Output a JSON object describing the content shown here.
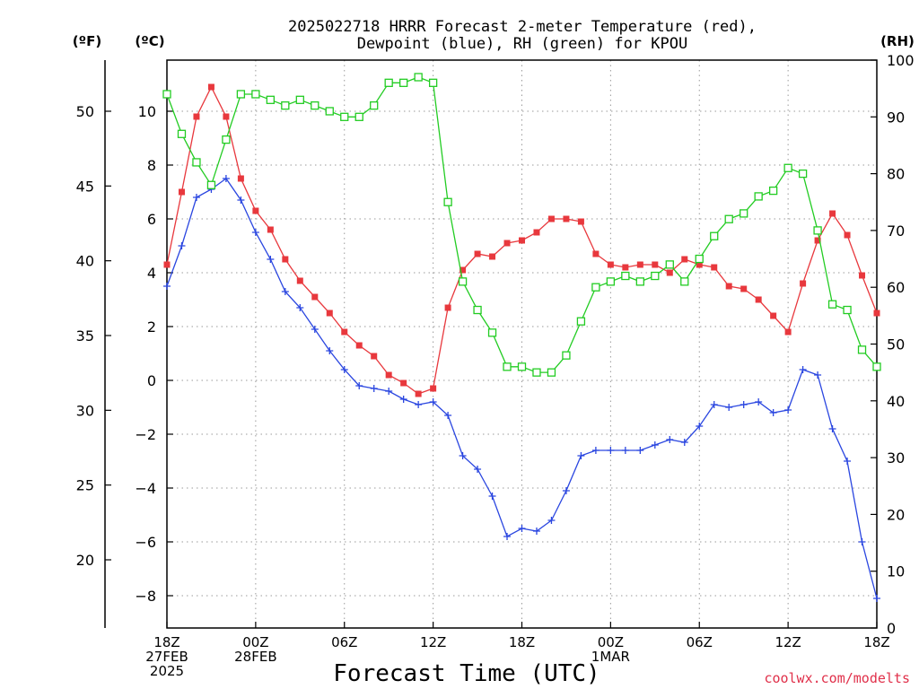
{
  "chart_data": {
    "type": "line",
    "title_line1": "2025022718 HRRR Forecast 2-meter Temperature (red),",
    "title_line2": "Dewpoint (blue), RH (green) for KPOU",
    "xlabel": "Forecast Time (UTC)",
    "units": {
      "fahrenheit": "(ºF)",
      "celsius": "(ºC)",
      "rh": "(RH)"
    },
    "watermark": "coolwx.com/modelts",
    "x_range": [
      0,
      48
    ],
    "celsius_range": [
      -9.2,
      11.9
    ],
    "rh_range": [
      0,
      100
    ],
    "x_ticks": [
      {
        "x": 0,
        "lines": [
          "18Z",
          "27FEB",
          "2025"
        ]
      },
      {
        "x": 6,
        "lines": [
          "00Z",
          "28FEB"
        ]
      },
      {
        "x": 12,
        "lines": [
          "06Z"
        ]
      },
      {
        "x": 18,
        "lines": [
          "12Z"
        ]
      },
      {
        "x": 24,
        "lines": [
          "18Z"
        ]
      },
      {
        "x": 30,
        "lines": [
          "00Z",
          "1MAR"
        ]
      },
      {
        "x": 36,
        "lines": [
          "06Z"
        ]
      },
      {
        "x": 42,
        "lines": [
          "12Z"
        ]
      },
      {
        "x": 48,
        "lines": [
          "18Z"
        ]
      }
    ],
    "celsius_ticks": [
      {
        "v": -8,
        "label": "−8"
      },
      {
        "v": -6,
        "label": "−6"
      },
      {
        "v": -4,
        "label": "−4"
      },
      {
        "v": -2,
        "label": "−2"
      },
      {
        "v": 0,
        "label": "0"
      },
      {
        "v": 2,
        "label": "2"
      },
      {
        "v": 4,
        "label": "4"
      },
      {
        "v": 6,
        "label": "6"
      },
      {
        "v": 8,
        "label": "8"
      },
      {
        "v": 10,
        "label": "10"
      }
    ],
    "fahrenheit_ticks": [
      {
        "v": 20,
        "label": "20"
      },
      {
        "v": 25,
        "label": "25"
      },
      {
        "v": 30,
        "label": "30"
      },
      {
        "v": 35,
        "label": "35"
      },
      {
        "v": 40,
        "label": "40"
      },
      {
        "v": 45,
        "label": "45"
      },
      {
        "v": 50,
        "label": "50"
      }
    ],
    "rh_ticks": [
      {
        "v": 0,
        "label": "0"
      },
      {
        "v": 10,
        "label": "10"
      },
      {
        "v": 20,
        "label": "20"
      },
      {
        "v": 30,
        "label": "30"
      },
      {
        "v": 40,
        "label": "40"
      },
      {
        "v": 50,
        "label": "50"
      },
      {
        "v": 60,
        "label": "60"
      },
      {
        "v": 70,
        "label": "70"
      },
      {
        "v": 80,
        "label": "80"
      },
      {
        "v": 90,
        "label": "90"
      },
      {
        "v": 100,
        "label": "100"
      }
    ],
    "grid": true,
    "series": [
      {
        "key": "temperature",
        "axis": "celsius",
        "color": "#e8383d",
        "marker": "filled-square",
        "values": [
          4.3,
          7.0,
          9.8,
          10.9,
          9.8,
          7.5,
          6.3,
          5.6,
          4.5,
          3.7,
          3.1,
          2.5,
          1.8,
          1.3,
          0.9,
          0.2,
          -0.1,
          -0.5,
          -0.3,
          2.7,
          4.1,
          4.7,
          4.6,
          5.1,
          5.2,
          5.5,
          6.0,
          6.0,
          5.9,
          4.7,
          4.3,
          4.2,
          4.3,
          4.3,
          4.0,
          4.5,
          4.3,
          4.2,
          3.5,
          3.4,
          3.0,
          2.4,
          1.8,
          3.6,
          5.2,
          6.2,
          5.4,
          3.9,
          2.5
        ]
      },
      {
        "key": "dewpoint",
        "axis": "celsius",
        "color": "#2a46e0",
        "marker": "plus",
        "values": [
          3.5,
          5.0,
          6.8,
          7.1,
          7.5,
          6.7,
          5.5,
          4.5,
          3.3,
          2.7,
          1.9,
          1.1,
          0.4,
          -0.2,
          -0.3,
          -0.4,
          -0.7,
          -0.9,
          -0.8,
          -1.3,
          -2.8,
          -3.3,
          -4.3,
          -5.8,
          -5.5,
          -5.6,
          -5.2,
          -4.1,
          -2.8,
          -2.6,
          -2.6,
          -2.6,
          -2.6,
          -2.4,
          -2.2,
          -2.3,
          -1.7,
          -0.9,
          -1.0,
          -0.9,
          -0.8,
          -1.2,
          -1.1,
          0.4,
          0.2,
          -1.8,
          -3.0,
          -6.0,
          -8.1
        ]
      },
      {
        "key": "rh",
        "axis": "rh",
        "color": "#22cc22",
        "marker": "open-square",
        "values": [
          94,
          87,
          82,
          78,
          86,
          94,
          94,
          93,
          92,
          93,
          92,
          91,
          90,
          90,
          92,
          96,
          96,
          97,
          96,
          75,
          61,
          56,
          52,
          46,
          46,
          45,
          45,
          48,
          54,
          60,
          61,
          62,
          61,
          62,
          64,
          61,
          65,
          69,
          72,
          73,
          76,
          77,
          81,
          80,
          70,
          57,
          56,
          49,
          46
        ]
      }
    ]
  }
}
